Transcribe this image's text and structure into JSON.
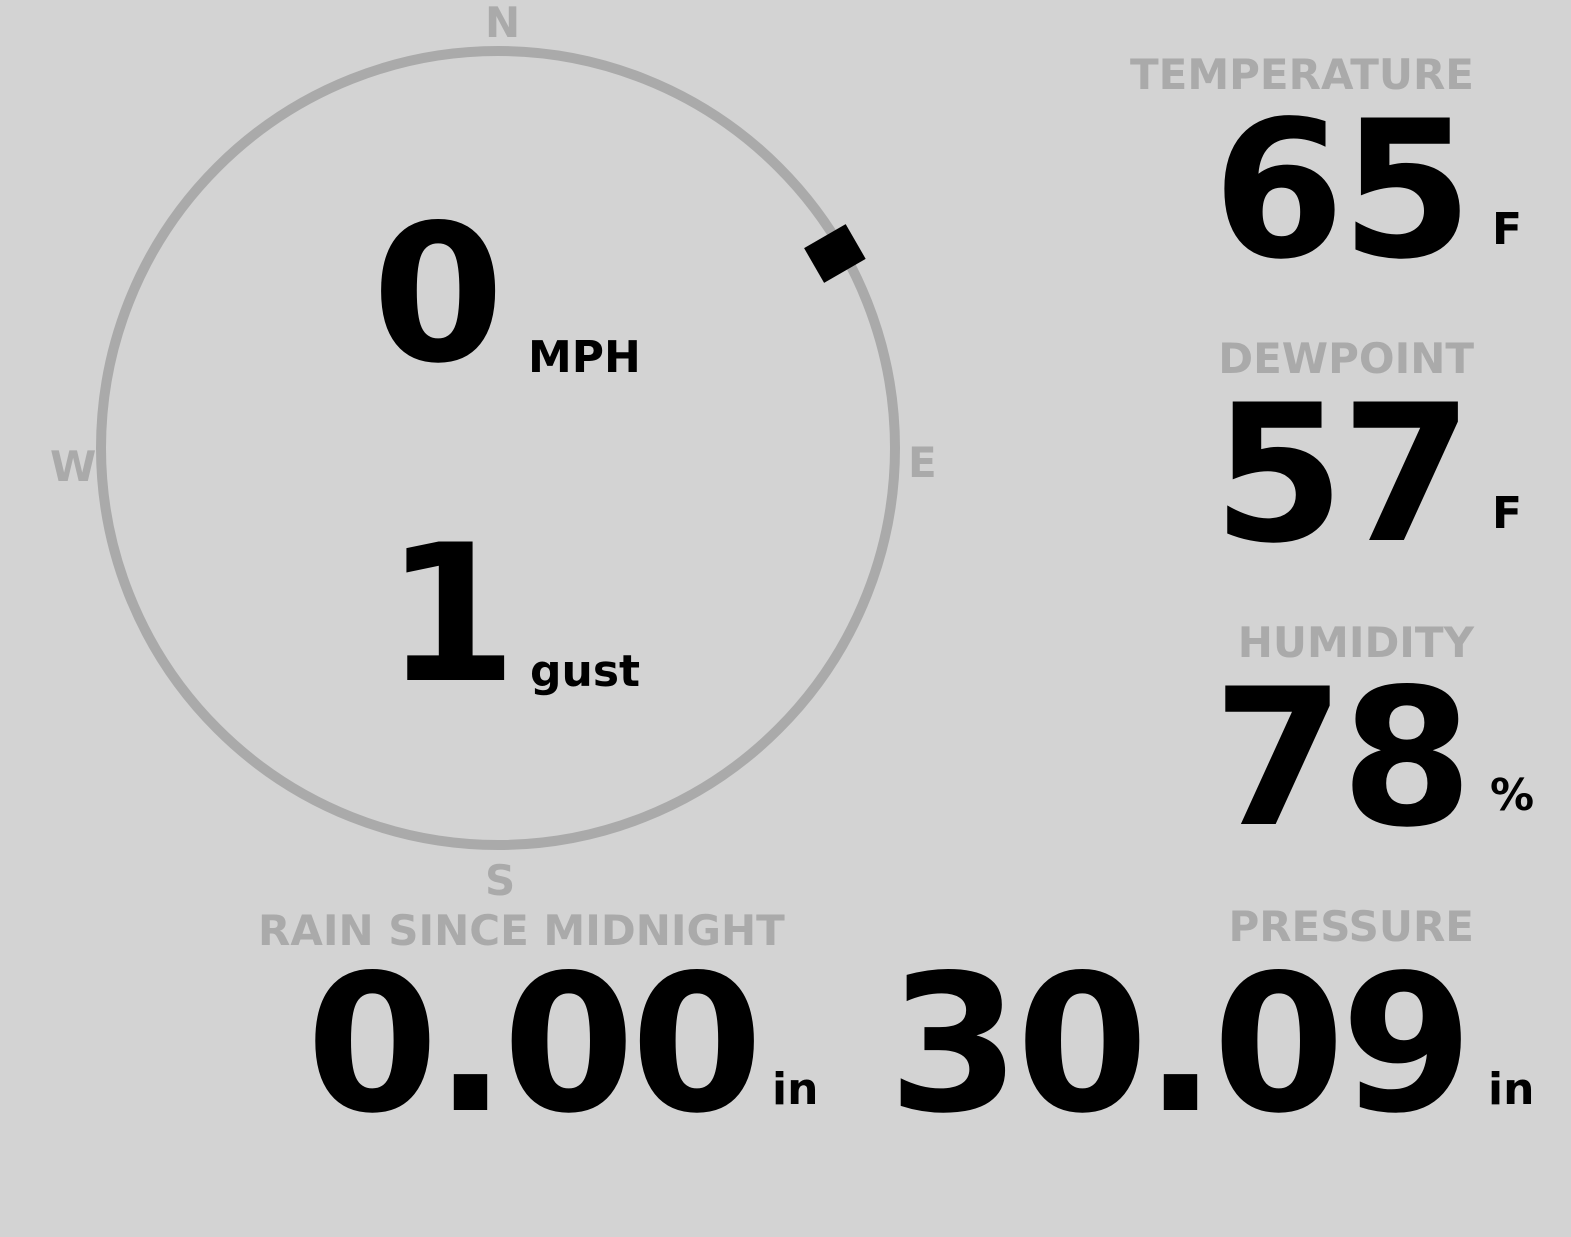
{
  "colors": {
    "background": "#d3d3d3",
    "label": "#aaaaaa",
    "value": "#000000",
    "compass_ring": "#aaaaaa",
    "wind_marker": "#000000"
  },
  "wind": {
    "compass": {
      "north": "N",
      "east": "E",
      "south": "S",
      "west": "W"
    },
    "direction_deg": 60,
    "speed": "0",
    "speed_unit": "MPH",
    "gust": "1",
    "gust_unit": "gust"
  },
  "temperature": {
    "label": "TEMPERATURE",
    "value": "65",
    "unit": "F"
  },
  "dewpoint": {
    "label": "DEWPOINT",
    "value": "57",
    "unit": "F"
  },
  "humidity": {
    "label": "HUMIDITY",
    "value": "78",
    "unit": "%"
  },
  "rain": {
    "label": "RAIN SINCE MIDNIGHT",
    "value": "0.00",
    "unit": "in"
  },
  "pressure": {
    "label": "PRESSURE",
    "value": "30.09",
    "unit": "in"
  }
}
